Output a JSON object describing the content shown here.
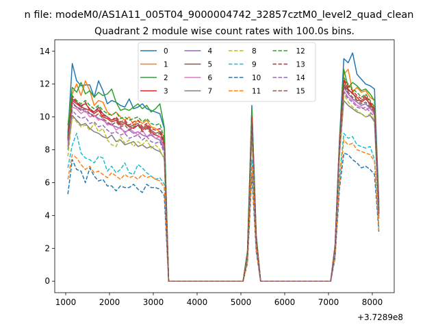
{
  "figure": {
    "suptitle": "n file: modeM0/AS1A11_005T04_9000004742_32857cztM0_level2_quad_clean",
    "offset_label": "+3.7289e8"
  },
  "chart_data": {
    "type": "line",
    "title": "Quadrant 2 module wise count rates with 100.0s bins.",
    "xlabel": "",
    "ylabel": "",
    "x_offset": 372890000,
    "xlim": [
      750,
      8500
    ],
    "ylim": [
      -0.7,
      14.7
    ],
    "xticks": [
      1000,
      2000,
      3000,
      4000,
      5000,
      6000,
      7000,
      8000
    ],
    "yticks": [
      0,
      2,
      4,
      6,
      8,
      10,
      12,
      14
    ],
    "grid": false,
    "legend_position": "top-center",
    "segments": [
      {
        "x_start": 1050,
        "x_end": 3250,
        "bins": 23
      },
      {
        "x_start": 3250,
        "x_end": 5050,
        "value": 0
      },
      {
        "x_start": 5050,
        "x_end": 5450,
        "bins": 5
      },
      {
        "x_start": 5450,
        "x_end": 7150,
        "value": 0
      },
      {
        "x_start": 7150,
        "x_end": 8150,
        "bins": 11
      }
    ],
    "series": [
      {
        "name": "0",
        "color": "#1f77b4",
        "dash": "solid",
        "seg1": [
          9.0,
          13.25,
          12.2,
          11.9,
          11.95,
          11.95,
          11.2,
          12.2,
          11.6,
          10.8,
          11.0,
          10.9,
          10.7,
          10.6,
          11.1,
          10.5,
          10.6,
          10.8,
          10.5,
          10.4,
          10.3,
          10.2,
          9.3
        ],
        "seg2": [
          0.0,
          1.8,
          10.7,
          2.8,
          0.0
        ],
        "seg3": [
          2.2,
          8.6,
          13.55,
          13.3,
          13.9,
          12.6,
          12.3,
          12.0,
          11.9,
          11.7,
          4.8
        ]
      },
      {
        "name": "1",
        "color": "#ff7f0e",
        "dash": "solid",
        "seg1": [
          8.6,
          11.4,
          12.0,
          11.3,
          12.2,
          11.6,
          10.7,
          11.0,
          10.9,
          10.3,
          10.1,
          10.3,
          10.0,
          9.8,
          10.0,
          9.5,
          9.8,
          9.6,
          9.8,
          9.4,
          9.3,
          9.1,
          8.8
        ],
        "seg2": [
          0.0,
          1.7,
          10.2,
          2.7,
          0.0
        ],
        "seg3": [
          2.1,
          8.4,
          12.6,
          12.9,
          11.5,
          11.8,
          11.5,
          11.6,
          11.2,
          11.0,
          4.4
        ]
      },
      {
        "name": "2",
        "color": "#2ca02c",
        "dash": "solid",
        "seg1": [
          9.5,
          11.8,
          11.5,
          12.1,
          11.4,
          11.6,
          11.2,
          11.5,
          11.3,
          11.4,
          11.7,
          10.9,
          10.4,
          10.5,
          10.4,
          10.6,
          10.8,
          10.5,
          10.7,
          10.3,
          10.5,
          10.8,
          9.4
        ],
        "seg2": [
          0.0,
          1.8,
          10.5,
          2.8,
          0.0
        ],
        "seg3": [
          2.2,
          8.5,
          12.9,
          11.8,
          12.1,
          11.9,
          11.6,
          11.7,
          11.4,
          11.0,
          4.6
        ]
      },
      {
        "name": "3",
        "color": "#d62728",
        "dash": "solid",
        "seg1": [
          8.7,
          11.0,
          10.8,
          10.6,
          10.5,
          10.4,
          10.2,
          10.4,
          10.0,
          9.9,
          9.7,
          9.8,
          9.5,
          9.6,
          9.4,
          9.3,
          9.5,
          9.2,
          9.4,
          9.1,
          8.9,
          8.8,
          8.2
        ],
        "seg2": [
          0.0,
          1.7,
          9.8,
          2.6,
          0.0
        ],
        "seg3": [
          2.0,
          8.2,
          12.2,
          11.7,
          11.4,
          11.2,
          10.9,
          11.1,
          10.8,
          10.5,
          4.2
        ]
      },
      {
        "name": "4",
        "color": "#9467bd",
        "dash": "solid",
        "seg1": [
          8.5,
          10.9,
          10.6,
          10.5,
          10.3,
          10.2,
          10.1,
          9.9,
          9.8,
          9.6,
          9.5,
          9.4,
          9.3,
          9.1,
          9.2,
          9.0,
          9.1,
          8.9,
          8.8,
          8.9,
          8.7,
          8.6,
          8.0
        ],
        "seg2": [
          0.0,
          1.6,
          9.6,
          2.5,
          0.0
        ],
        "seg3": [
          2.0,
          8.0,
          11.8,
          11.4,
          11.1,
          10.9,
          10.7,
          10.8,
          10.5,
          10.2,
          4.1
        ]
      },
      {
        "name": "5",
        "color": "#8c564b",
        "dash": "solid",
        "seg1": [
          8.8,
          11.1,
          10.9,
          10.7,
          10.8,
          10.5,
          10.3,
          10.6,
          10.2,
          10.0,
          9.8,
          9.9,
          9.6,
          9.7,
          9.4,
          9.5,
          9.6,
          9.3,
          9.5,
          9.2,
          9.0,
          9.1,
          8.4
        ],
        "seg2": [
          0.0,
          1.7,
          9.9,
          2.6,
          0.0
        ],
        "seg3": [
          2.1,
          8.3,
          12.0,
          11.6,
          11.5,
          11.0,
          11.0,
          11.2,
          10.7,
          10.4,
          4.3
        ]
      },
      {
        "name": "6",
        "color": "#e377c2",
        "dash": "solid",
        "seg1": [
          8.4,
          10.6,
          10.5,
          10.2,
          10.4,
          10.0,
          10.1,
          9.8,
          9.9,
          9.5,
          9.6,
          9.2,
          9.4,
          9.0,
          9.3,
          9.1,
          8.9,
          9.2,
          8.8,
          9.0,
          8.7,
          8.8,
          8.1
        ],
        "seg2": [
          0.0,
          1.6,
          9.5,
          2.5,
          0.0
        ],
        "seg3": [
          2.0,
          8.0,
          11.6,
          11.2,
          11.0,
          10.7,
          10.6,
          10.4,
          10.6,
          10.1,
          4.0
        ]
      },
      {
        "name": "7",
        "color": "#7f7f7f",
        "dash": "solid",
        "seg1": [
          8.0,
          10.1,
          9.8,
          9.5,
          9.6,
          9.3,
          9.1,
          9.0,
          8.8,
          8.7,
          8.9,
          8.5,
          8.6,
          8.3,
          8.4,
          8.5,
          8.2,
          8.3,
          8.1,
          8.2,
          8.0,
          7.9,
          7.5
        ],
        "seg2": [
          0.0,
          1.5,
          9.0,
          2.4,
          0.0
        ],
        "seg3": [
          1.9,
          7.6,
          11.0,
          10.7,
          10.5,
          10.3,
          10.2,
          10.0,
          10.1,
          9.7,
          3.8
        ]
      },
      {
        "name": "8",
        "color": "#bcbd22",
        "dash": "dashed",
        "seg1": [
          7.6,
          10.0,
          9.7,
          9.4,
          9.5,
          9.2,
          9.6,
          9.1,
          9.3,
          8.6,
          8.3,
          8.2,
          8.8,
          8.4,
          8.6,
          8.2,
          8.5,
          8.3,
          8.6,
          8.1,
          8.3,
          8.0,
          7.4
        ],
        "seg2": [
          0.0,
          1.5,
          8.9,
          2.4,
          0.0
        ],
        "seg3": [
          1.9,
          7.5,
          11.4,
          10.9,
          10.6,
          10.4,
          10.2,
          10.0,
          10.2,
          9.8,
          3.9
        ]
      },
      {
        "name": "9",
        "color": "#17becf",
        "dash": "dashed",
        "seg1": [
          6.9,
          8.3,
          9.0,
          7.8,
          7.5,
          7.4,
          7.2,
          7.6,
          7.5,
          6.7,
          7.0,
          6.6,
          6.8,
          7.2,
          6.6,
          6.5,
          7.1,
          6.9,
          6.6,
          6.4,
          6.2,
          6.3,
          5.9
        ],
        "seg2": [
          0.0,
          1.3,
          7.4,
          2.0,
          0.0
        ],
        "seg3": [
          1.6,
          6.3,
          9.0,
          8.7,
          8.8,
          8.3,
          8.2,
          8.1,
          8.2,
          7.4,
          3.3
        ]
      },
      {
        "name": "10",
        "color": "#1f77b4",
        "dash": "dashed",
        "seg1": [
          5.3,
          7.4,
          6.8,
          6.7,
          6.0,
          6.9,
          6.4,
          6.1,
          6.2,
          5.8,
          5.8,
          5.5,
          5.8,
          5.7,
          5.7,
          5.9,
          5.6,
          5.4,
          5.9,
          5.7,
          5.7,
          5.6,
          5.2
        ],
        "seg2": [
          0.0,
          1.1,
          6.5,
          1.8,
          0.0
        ],
        "seg3": [
          1.4,
          5.6,
          7.8,
          7.7,
          7.4,
          7.2,
          6.9,
          7.0,
          6.8,
          6.5,
          3.0
        ]
      },
      {
        "name": "11",
        "color": "#ff7f0e",
        "dash": "dashed",
        "seg1": [
          6.2,
          7.7,
          7.5,
          7.1,
          6.8,
          7.0,
          6.6,
          6.7,
          6.5,
          6.3,
          6.6,
          6.4,
          6.2,
          6.5,
          6.3,
          6.4,
          6.2,
          6.5,
          6.3,
          6.4,
          6.2,
          6.1,
          5.7
        ],
        "seg2": [
          0.0,
          1.2,
          7.0,
          1.9,
          0.0
        ],
        "seg3": [
          1.5,
          6.0,
          8.6,
          8.3,
          8.4,
          8.0,
          7.9,
          7.8,
          7.7,
          7.3,
          3.1
        ]
      },
      {
        "name": "12",
        "color": "#2ca02c",
        "dash": "dashed",
        "seg1": [
          8.9,
          11.3,
          11.0,
          10.8,
          11.0,
          10.7,
          10.5,
          10.7,
          10.4,
          10.2,
          10.1,
          10.3,
          9.9,
          10.0,
          9.8,
          9.9,
          10.0,
          9.7,
          9.9,
          9.6,
          9.5,
          9.6,
          8.7
        ],
        "seg2": [
          0.0,
          1.8,
          10.3,
          2.7,
          0.0
        ],
        "seg3": [
          2.1,
          8.4,
          12.4,
          12.0,
          11.7,
          11.5,
          11.2,
          11.4,
          11.0,
          10.6,
          4.4
        ]
      },
      {
        "name": "13",
        "color": "#d62728",
        "dash": "dashed",
        "seg1": [
          8.7,
          11.2,
          10.9,
          10.6,
          10.9,
          10.4,
          10.3,
          10.5,
          10.1,
          10.0,
          9.8,
          10.0,
          9.7,
          9.8,
          9.5,
          9.7,
          9.8,
          9.4,
          9.6,
          9.3,
          9.2,
          9.3,
          8.5
        ],
        "seg2": [
          0.0,
          1.7,
          10.0,
          2.6,
          0.0
        ],
        "seg3": [
          2.1,
          8.3,
          12.3,
          11.9,
          11.6,
          11.3,
          11.1,
          11.3,
          10.9,
          10.5,
          4.3
        ]
      },
      {
        "name": "14",
        "color": "#9467bd",
        "dash": "dashed",
        "seg1": [
          8.2,
          10.4,
          10.1,
          9.9,
          10.0,
          9.6,
          9.7,
          9.4,
          9.5,
          9.2,
          9.0,
          9.1,
          8.9,
          9.0,
          8.7,
          8.8,
          8.9,
          8.6,
          8.8,
          8.5,
          8.4,
          8.5,
          7.8
        ],
        "seg2": [
          0.0,
          1.6,
          9.3,
          2.5,
          0.0
        ],
        "seg3": [
          2.0,
          7.9,
          11.5,
          11.1,
          10.9,
          10.6,
          10.5,
          10.6,
          10.3,
          10.0,
          4.0
        ]
      },
      {
        "name": "15",
        "color": "#8c564b",
        "dash": "dashed",
        "seg1": [
          8.6,
          10.8,
          10.6,
          10.4,
          10.5,
          10.2,
          10.0,
          10.2,
          9.9,
          9.7,
          9.5,
          9.7,
          9.4,
          9.5,
          9.2,
          9.4,
          9.5,
          9.1,
          9.3,
          9.0,
          8.9,
          9.0,
          8.3
        ],
        "seg2": [
          0.0,
          1.7,
          9.7,
          2.6,
          0.0
        ],
        "seg3": [
          2.0,
          8.1,
          11.9,
          11.5,
          11.2,
          11.0,
          10.8,
          10.9,
          10.6,
          10.3,
          4.1
        ]
      }
    ]
  }
}
